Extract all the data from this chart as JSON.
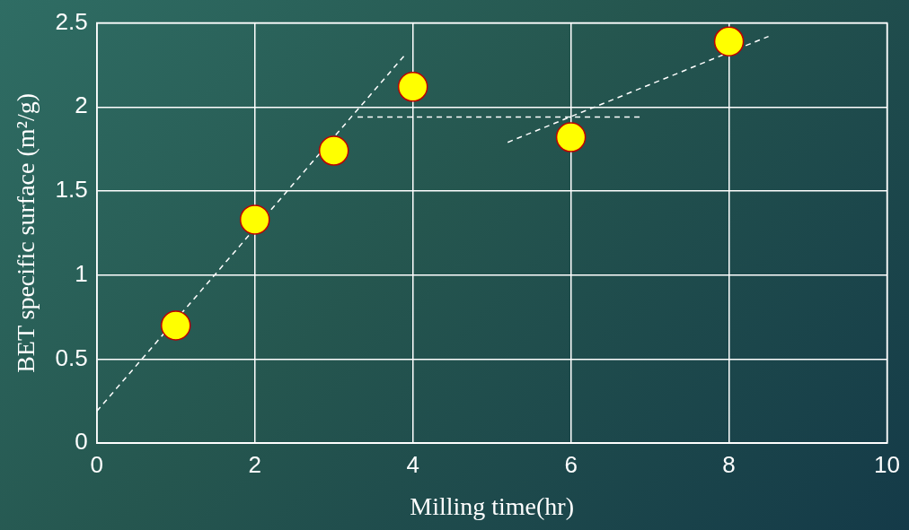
{
  "chart_data": {
    "type": "scatter",
    "xlabel": "Milling time(hr)",
    "ylabel": "BET specific surface (m²/g)",
    "xlim": [
      0,
      10
    ],
    "xticks": [
      0,
      2,
      4,
      6,
      8,
      10
    ],
    "ylim": [
      0,
      2.5
    ],
    "yticks": [
      0,
      0.5,
      1,
      1.5,
      2,
      2.5
    ],
    "grid": true,
    "legend": false,
    "series": [
      {
        "type": "scatter",
        "color": "#ffff00",
        "marker": "circle",
        "x": [
          1,
          2,
          3,
          4,
          6,
          8
        ],
        "values": [
          0.7,
          1.33,
          1.74,
          2.12,
          1.82,
          2.39
        ]
      },
      {
        "type": "line",
        "color": "#ffffff",
        "line_style": "dashed",
        "marker": "none",
        "x": [
          0,
          3.9
        ],
        "values": [
          0.19,
          2.31
        ]
      },
      {
        "type": "line",
        "color": "#ffffff",
        "line_style": "dashed",
        "marker": "none",
        "x": [
          3.3,
          6.9
        ],
        "values": [
          1.94,
          1.94
        ]
      },
      {
        "type": "line",
        "color": "#ffffff",
        "line_style": "dashed",
        "marker": "none",
        "x": [
          5.2,
          8.5
        ],
        "values": [
          1.79,
          2.42
        ]
      }
    ]
  }
}
